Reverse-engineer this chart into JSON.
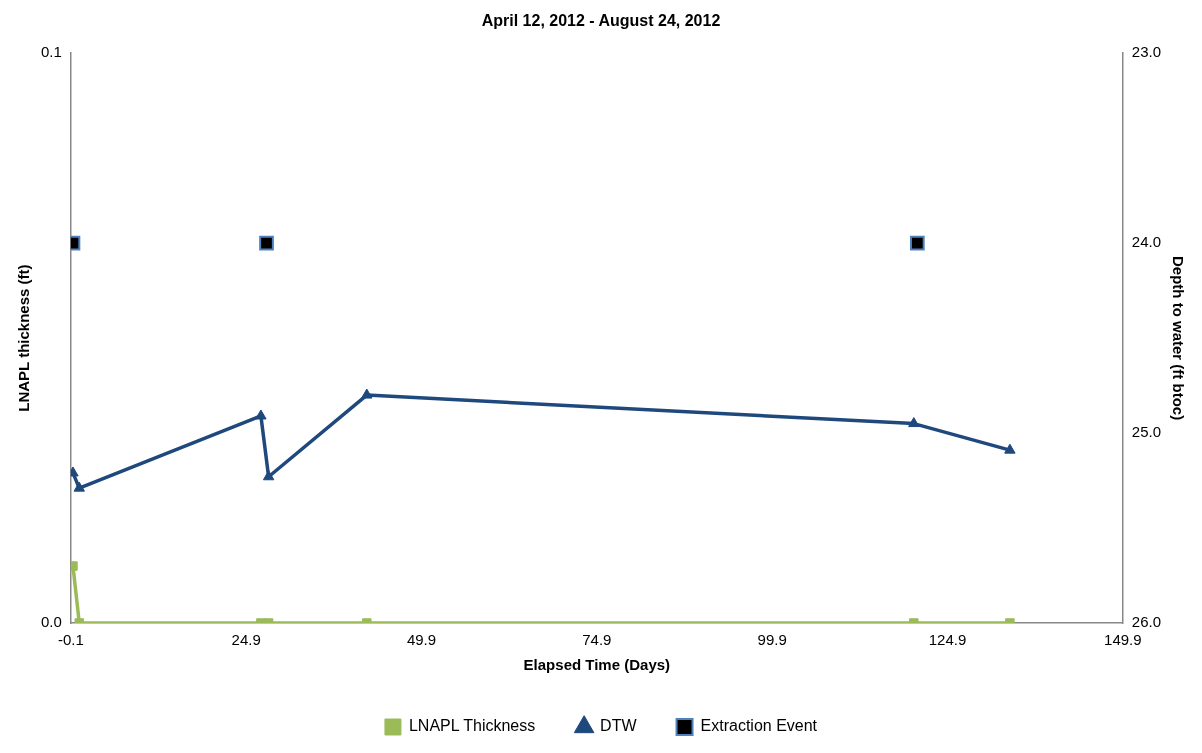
{
  "chart_data": {
    "type": "line",
    "title": "April 12, 2012 - August 24, 2012",
    "xlabel": "Elapsed Time (Days)",
    "ylabel": "LNAPL thickness (ft)",
    "y2label": "Depth to water (ft btoc)",
    "xlim": [
      -0.1,
      149.9
    ],
    "xticks": [
      -0.1,
      24.9,
      49.9,
      74.9,
      99.9,
      124.9,
      149.9
    ],
    "ylim": [
      0,
      0.1
    ],
    "yticks": [
      {
        "value": 0,
        "label": "0.0"
      },
      {
        "value": 0.1,
        "label": "0.1"
      }
    ],
    "y2lim": [
      26,
      23
    ],
    "y2ticks": [
      {
        "value": 23,
        "label": "23.0"
      },
      {
        "value": 24,
        "label": "24.0"
      },
      {
        "value": 25,
        "label": "25.0"
      },
      {
        "value": 26,
        "label": "26.0"
      }
    ],
    "grid": false,
    "legend": "bottom",
    "line_style": "solid",
    "series": [
      {
        "name": "LNAPL Thickness",
        "marker": "square",
        "color": "#9bbb59",
        "x": [
          0.2,
          1.1,
          27.0,
          28.1,
          42.1,
          120.1,
          133.8
        ],
        "values": [
          0.01,
          0,
          0,
          0,
          0,
          0,
          0
        ]
      },
      {
        "name": "DTW",
        "marker": "triangle",
        "color": "#1f497d",
        "axis": "y2",
        "x": [
          0.2,
          1.1,
          27.0,
          28.1,
          42.1,
          120.1,
          133.8
        ],
        "values": [
          25.21,
          25.29,
          24.91,
          25.23,
          24.8,
          24.95,
          25.09
        ]
      },
      {
        "name": "Extraction Event",
        "type": "scatter",
        "marker": "square",
        "color": "#000000",
        "axis": "y2",
        "x": [
          0.2,
          27.8,
          120.6
        ],
        "values": [
          24,
          24,
          24
        ]
      }
    ]
  }
}
